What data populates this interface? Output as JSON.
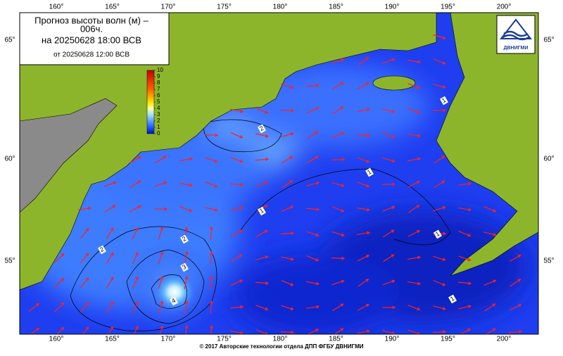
{
  "title": {
    "line1": "Прогноз высоты волн (м) –",
    "line2": "006ч.",
    "line3": "на 20250628 18:00 ВСВ",
    "line4": "от 20250628 12:00 ВСВ"
  },
  "longitudes": [
    "160°",
    "165°",
    "170°",
    "175°",
    "180°",
    "185°",
    "190°",
    "195°",
    "200°"
  ],
  "latitudes": [
    "65°",
    "60°",
    "55°"
  ],
  "colorbar": [
    0,
    1,
    2,
    3,
    4,
    5,
    6,
    7,
    8,
    9,
    10
  ],
  "contour_labels": [
    "2",
    "1",
    "1",
    "1",
    "2",
    "2",
    "3",
    "4",
    "1",
    "1"
  ],
  "logo": "ДВНИГМИ",
  "footer": "© 2017 Авторские технологии отдела ДПП ФГБУ ДВНИГМИ"
}
